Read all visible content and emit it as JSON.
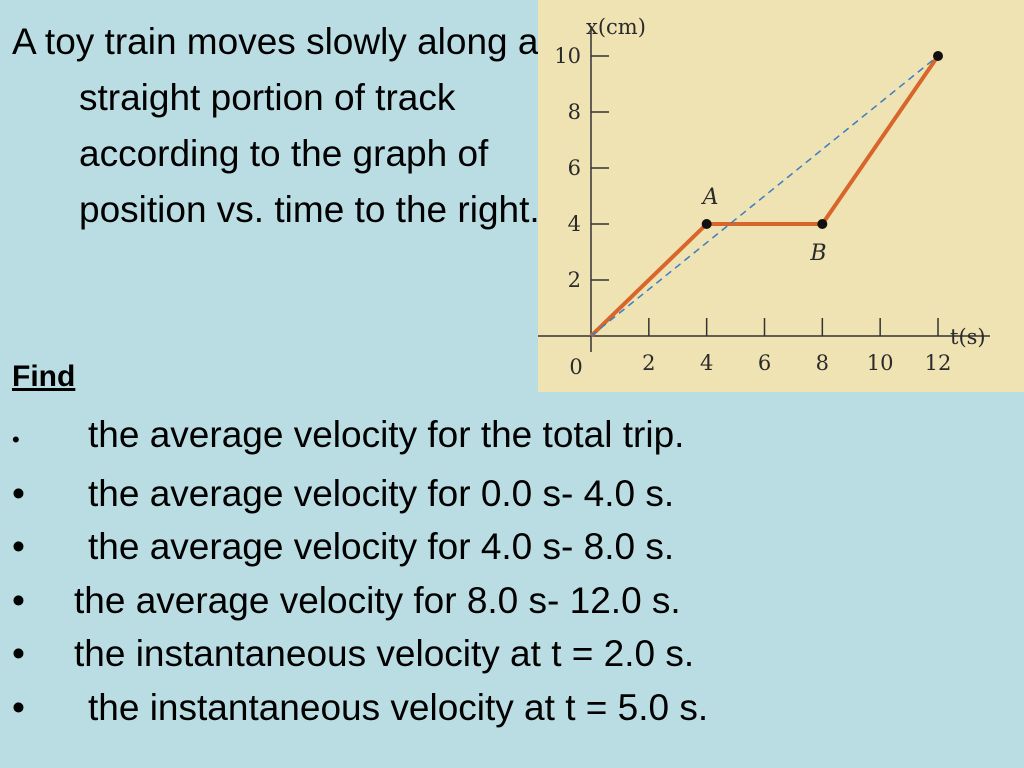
{
  "intro": "A toy train moves slowly along a straight portion of track according to the graph of position vs. time to the right.",
  "find_label": "Find",
  "questions": [
    {
      "bullet": "•",
      "text": "the average velocity for the total trip."
    },
    {
      "bullet": "•",
      "text": "the average velocity for 0.0 s- 4.0 s."
    },
    {
      "bullet": "•",
      "text": "the average velocity for 4.0 s- 8.0 s."
    },
    {
      "bullet": "•",
      "text": "the average velocity for 8.0 s- 12.0 s."
    },
    {
      "bullet": "•",
      "text": "the instantaneous velocity at t = 2.0 s."
    },
    {
      "bullet": "•",
      "text": "the instantaneous velocity at t = 5.0 s."
    }
  ],
  "colors": {
    "background": "#b9dde3",
    "chart_background": "#efe3b4",
    "position_line": "#d8652a",
    "average_line": "#3a7dc4"
  },
  "chart_data": {
    "type": "line",
    "xlabel": "t(s)",
    "ylabel": "x(cm)",
    "xlim": [
      0,
      12
    ],
    "ylim": [
      0,
      10
    ],
    "x_ticks": [
      2,
      4,
      6,
      8,
      10,
      12
    ],
    "y_ticks": [
      2,
      4,
      6,
      8,
      10
    ],
    "origin_label": "0",
    "grid": false,
    "series": [
      {
        "style": "solid",
        "x": [
          0,
          4,
          8,
          12
        ],
        "y": [
          0,
          4,
          4,
          10
        ]
      },
      {
        "style": "dashed",
        "x": [
          0,
          12
        ],
        "y": [
          0,
          10
        ]
      }
    ],
    "points": [
      {
        "label": "A",
        "x": 4,
        "y": 4
      },
      {
        "label": "B",
        "x": 8,
        "y": 4
      },
      {
        "label": "",
        "x": 12,
        "y": 10
      }
    ]
  }
}
